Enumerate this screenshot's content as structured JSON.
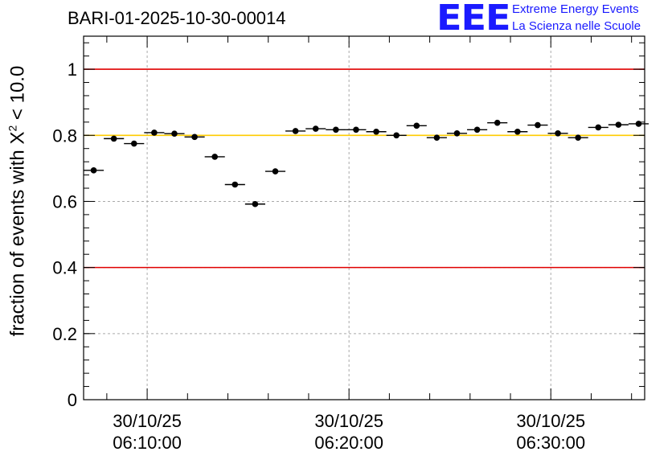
{
  "header": {
    "run_title": "BARI-01-2025-10-30-00014"
  },
  "logo": {
    "mark": "EEE",
    "line1": "Extreme Energy Events",
    "line2": "La Scienza nelle Scuole"
  },
  "chart_data": {
    "type": "scatter",
    "title": "BARI-01-2025-10-30-00014",
    "ylabel_prefix": "fraction of events with ",
    "ylabel_symbol": "X",
    "ylabel_sup": "2",
    "ylabel_suffix": " < 10.0",
    "ylim": [
      0,
      1.1
    ],
    "yticks": [
      0,
      0.2,
      0.4,
      0.6,
      0.8,
      1
    ],
    "ytick_labels": [
      "0",
      "0.2",
      "0.4",
      "0.6",
      "0.8",
      "1"
    ],
    "xlim_minutes": [
      6.65,
      34.45
    ],
    "xticks_minutes": [
      9.8,
      19.8,
      29.8
    ],
    "xtick_labels": [
      [
        "30/10/25",
        "06:10:00"
      ],
      [
        "30/10/25",
        "06:20:00"
      ],
      [
        "30/10/25",
        "06:30:00"
      ]
    ],
    "minor_xticks_minutes": [
      7.8,
      11.8,
      13.8,
      15.8,
      17.8,
      21.8,
      23.8,
      25.8,
      27.8,
      31.8,
      33.8
    ],
    "grid": true,
    "bin_width_minutes": 1.0,
    "x_minutes": [
      7.15,
      8.15,
      9.15,
      10.15,
      11.15,
      12.15,
      13.15,
      14.15,
      15.15,
      16.15,
      17.15,
      18.15,
      19.15,
      20.15,
      21.15,
      22.15,
      23.15,
      24.15,
      25.15,
      26.15,
      27.15,
      28.15,
      29.15,
      30.15,
      31.15,
      32.15,
      33.15,
      34.15
    ],
    "values": [
      0.694,
      0.79,
      0.775,
      0.808,
      0.805,
      0.795,
      0.735,
      0.651,
      0.592,
      0.691,
      0.813,
      0.82,
      0.817,
      0.817,
      0.811,
      0.8,
      0.829,
      0.793,
      0.806,
      0.817,
      0.838,
      0.811,
      0.831,
      0.806,
      0.793,
      0.824,
      0.832,
      0.835
    ],
    "reference_lines": [
      {
        "name": "upper-limit",
        "y": 1.0,
        "color": "#e00000"
      },
      {
        "name": "target",
        "y": 0.8,
        "color": "#ffcc00"
      },
      {
        "name": "lower-limit",
        "y": 0.4,
        "color": "#e00000"
      }
    ],
    "marker_color": "#000000"
  }
}
